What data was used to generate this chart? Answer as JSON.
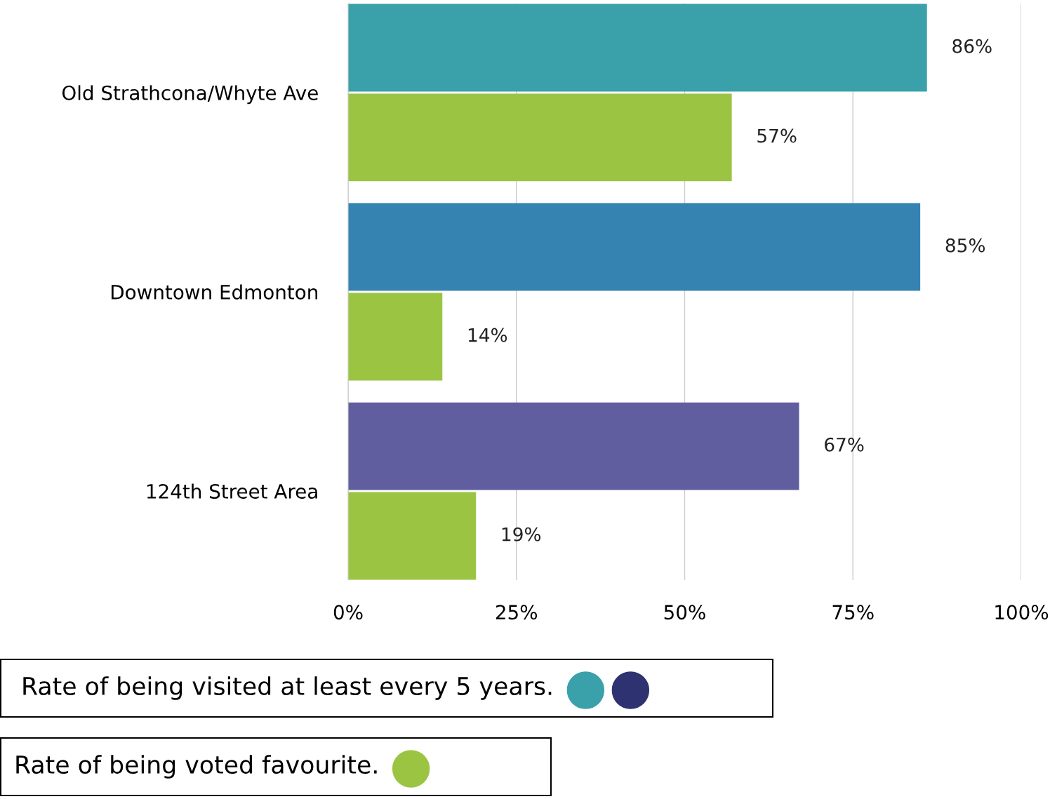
{
  "chart_data": {
    "type": "bar",
    "orientation": "horizontal",
    "categories": [
      "Old Strathcona/Whyte Ave",
      "Downtown Edmonton",
      "124th Street Area"
    ],
    "series": [
      {
        "name": "Rate of being visited at least every 5 years.",
        "color": "#3aa1ab",
        "colors": [
          "#3aa1ab",
          "#3483b1",
          "#605e9f"
        ],
        "values": [
          86,
          85,
          67
        ],
        "value_labels": [
          "86%",
          "85%",
          "67%"
        ]
      },
      {
        "name": "Rate of being voted favourite.",
        "color": "#9bc443",
        "values": [
          57,
          14,
          19
        ],
        "value_labels": [
          "57%",
          "14%",
          "19%"
        ]
      }
    ],
    "xlim": [
      0,
      100
    ],
    "xticks": [
      {
        "value": 0,
        "label": "0%"
      },
      {
        "value": 25,
        "label": "25%"
      },
      {
        "value": 50,
        "label": "50%"
      },
      {
        "value": 75,
        "label": "75%"
      },
      {
        "value": 100,
        "label": "100%"
      }
    ],
    "grid": "x",
    "legend": "bottom"
  }
}
